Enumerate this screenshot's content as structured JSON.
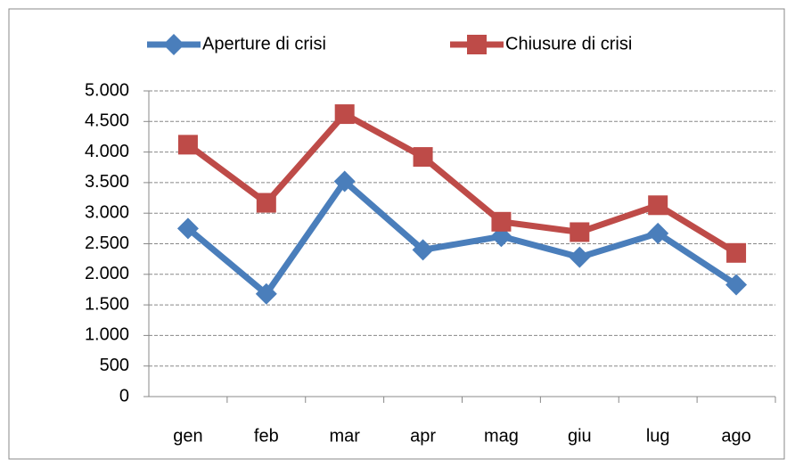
{
  "chart_data": {
    "type": "line",
    "categories": [
      "gen",
      "feb",
      "mar",
      "apr",
      "mag",
      "giu",
      "lug",
      "ago"
    ],
    "series": [
      {
        "name": "Aperture di crisi",
        "color": "#4a7ebb",
        "marker": "diamond",
        "values": [
          2750,
          1680,
          3520,
          2400,
          2620,
          2280,
          2670,
          1830
        ]
      },
      {
        "name": "Chiusure di crisi",
        "color": "#be4b48",
        "marker": "square",
        "values": [
          4120,
          3170,
          4620,
          3920,
          2860,
          2690,
          3130,
          2350
        ]
      }
    ],
    "ylim": [
      0,
      5000
    ],
    "yticks": [
      0,
      500,
      {
        "value": 1000,
        "label": "1.000"
      },
      {
        "value": 1500,
        "label": "1.500"
      },
      {
        "value": 2000,
        "label": "2.000"
      },
      {
        "value": 2500,
        "label": "2.500"
      },
      {
        "value": 3000,
        "label": "3.000"
      },
      {
        "value": 3500,
        "label": "3.500"
      },
      {
        "value": 4000,
        "label": "4.000"
      },
      {
        "value": 4500,
        "label": "4.500"
      },
      {
        "value": 5000,
        "label": "5.000"
      }
    ],
    "grid": true,
    "legend": "top"
  }
}
